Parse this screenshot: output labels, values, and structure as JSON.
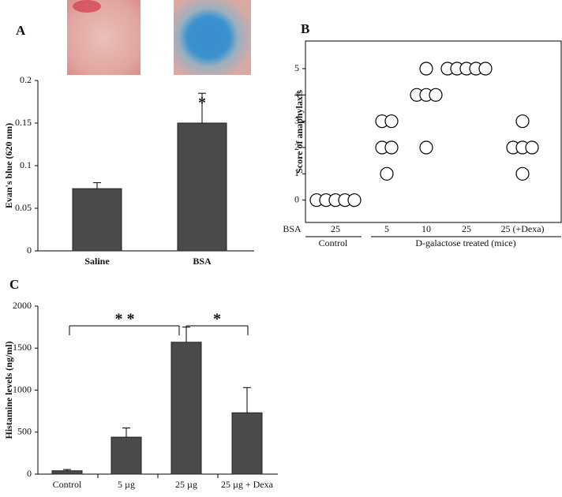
{
  "chart_data": [
    {
      "type": "bar",
      "panel": "A",
      "y_label": "Evan's blue (620 nm)",
      "categories": [
        "Saline",
        "BSA"
      ],
      "values": [
        0.073,
        0.15
      ],
      "errors": [
        0.007,
        0.035
      ],
      "color": "#4a4a4a",
      "ylim": [
        0,
        0.2
      ],
      "yticks": [
        0,
        0.05,
        0.1,
        0.15,
        0.2
      ],
      "annotations": [
        "*"
      ]
    },
    {
      "type": "dot",
      "panel": "B",
      "y_label": "Score of anaphylaxis",
      "x_label": "BSA",
      "categories": [
        "25",
        "5",
        "10",
        "25",
        "25 (+Dexa)"
      ],
      "values": [
        [
          0,
          0,
          0,
          0,
          0
        ],
        [
          3,
          3,
          2,
          2,
          1
        ],
        [
          5,
          4,
          4,
          4,
          2
        ],
        [
          5,
          5,
          5,
          5,
          5
        ],
        [
          3,
          2,
          2,
          2,
          1
        ]
      ],
      "groups": [
        "Control",
        "D-galactose treated (mice)"
      ],
      "ylim": [
        -0.85,
        6.05
      ],
      "yticks": [
        0,
        1,
        2,
        3,
        4,
        5
      ]
    },
    {
      "type": "bar",
      "panel": "C",
      "y_label": "Histamine levels (ng/ml)",
      "categories": [
        "Control",
        "5 µg",
        "25 µg",
        "25 µg + Dexa"
      ],
      "values": [
        40,
        440,
        1570,
        730
      ],
      "errors": [
        15,
        110,
        180,
        300
      ],
      "color": "#4a4a4a",
      "ylim": [
        0,
        2000
      ],
      "yticks": [
        0,
        500,
        1000,
        1500,
        2000
      ],
      "annotations": [
        "* *",
        "*"
      ]
    }
  ]
}
